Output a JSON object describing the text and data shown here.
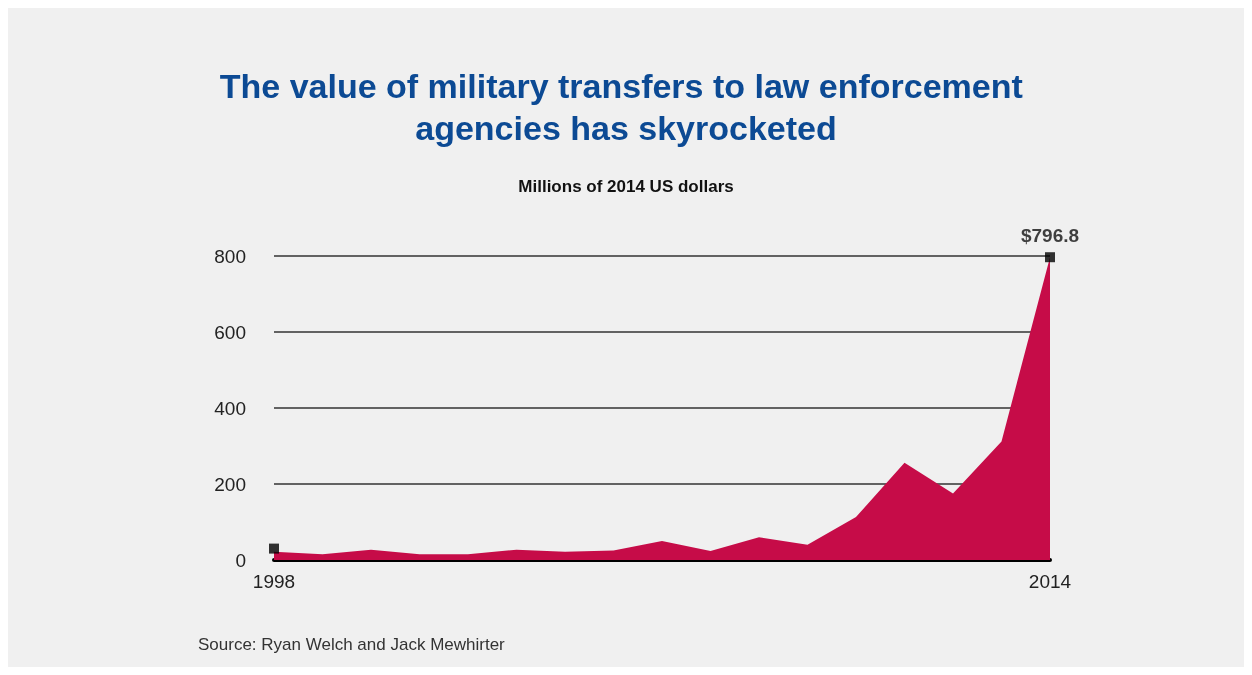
{
  "chart_data": {
    "type": "area",
    "title": "The value of military transfers to law enforcement agencies has skyrocketed",
    "subtitle": "Millions of 2014 US dollars",
    "x": [
      1998,
      1999,
      2000,
      2001,
      2002,
      2003,
      2004,
      2005,
      2006,
      2007,
      2008,
      2009,
      2010,
      2011,
      2012,
      2013,
      2014
    ],
    "series": [
      {
        "color": "#c60c48",
        "values": [
          22,
          15,
          27,
          15,
          15,
          27,
          22,
          25,
          50,
          24,
          60,
          40,
          113,
          256,
          175,
          312,
          796.8
        ]
      },
      {
        "type": "scatter",
        "color": "#000000",
        "marker": "square",
        "x": [
          1998,
          2014
        ],
        "values": [
          30,
          796.8
        ]
      }
    ],
    "xlim": [
      1998,
      2014
    ],
    "xticks": [
      1998,
      2014
    ],
    "ylim": [
      0,
      800
    ],
    "yticks": [
      0,
      200,
      400,
      600,
      800
    ],
    "grid": "y",
    "annotations": [
      {
        "text": "$796.8",
        "x": 2014,
        "y": 796.8
      },
      "Source: Ryan Welch and Jack Mewhirter"
    ]
  }
}
